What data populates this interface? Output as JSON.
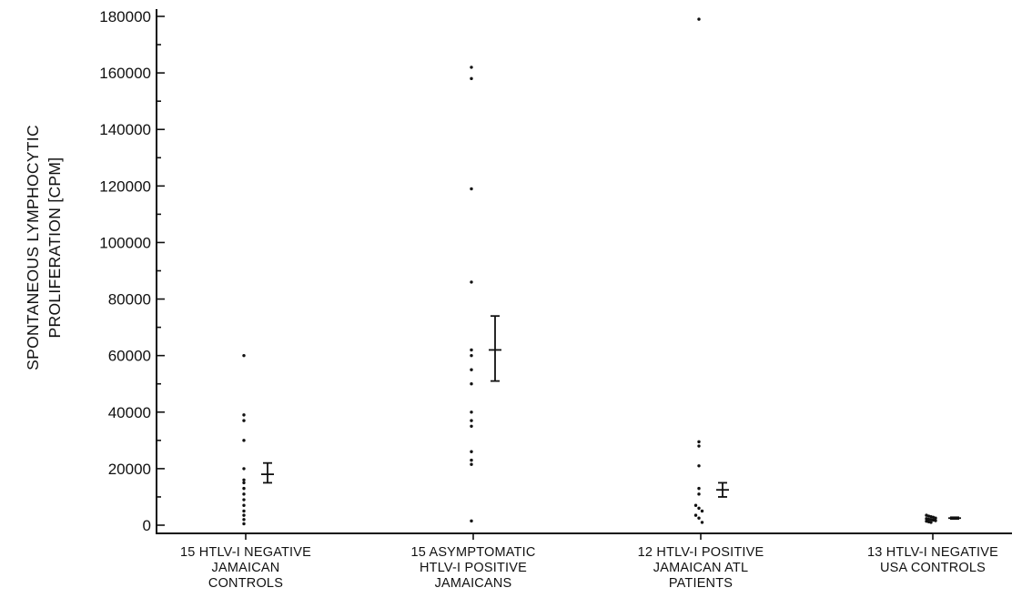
{
  "chart_data": {
    "type": "scatter",
    "title": "",
    "xlabel": "",
    "ylabel": [
      "SPONTANEOUS LYMPHOCYTIC",
      "PROLIFERATION [CPM]"
    ],
    "ylim": [
      0,
      180000
    ],
    "yticks": [
      0,
      20000,
      40000,
      60000,
      80000,
      100000,
      120000,
      140000,
      160000,
      180000
    ],
    "grid": false,
    "legend": "none",
    "groups": [
      {
        "label": [
          "15 HTLV-I NEGATIVE",
          "JAMAICAN",
          "CONTROLS"
        ],
        "values": [
          60000,
          39000,
          37000,
          30000,
          20000,
          16000,
          15000,
          13000,
          11000,
          9000,
          7000,
          5000,
          3500,
          2000,
          500
        ],
        "mean": 18000,
        "error_low": 15000,
        "error_high": 22000
      },
      {
        "label": [
          "15 ASYMPTOMATIC",
          "HTLV-I POSITIVE",
          "JAMAICANS"
        ],
        "values": [
          162000,
          158000,
          119000,
          86000,
          62000,
          60000,
          55000,
          50000,
          40000,
          37000,
          35000,
          26000,
          23000,
          21500,
          1500
        ],
        "mean": 62000,
        "error_low": 51000,
        "error_high": 74000
      },
      {
        "label": [
          "12 HTLV-I POSITIVE",
          "JAMAICAN ATL",
          "PATIENTS"
        ],
        "values": [
          179000,
          29500,
          28000,
          21000,
          13000,
          11000,
          7000,
          6000,
          5000,
          3500,
          2500,
          1000
        ],
        "mean": 12500,
        "error_low": 10000,
        "error_high": 15000
      },
      {
        "label": [
          "13 HTLV-I NEGATIVE",
          "USA CONTROLS"
        ],
        "values": [
          3500,
          3200,
          3000,
          2800,
          2500,
          2300,
          2100,
          2000,
          1800,
          1600,
          1400,
          1200,
          1000
        ],
        "mean": 2500,
        "error_low": 2200,
        "error_high": 2800
      }
    ]
  }
}
